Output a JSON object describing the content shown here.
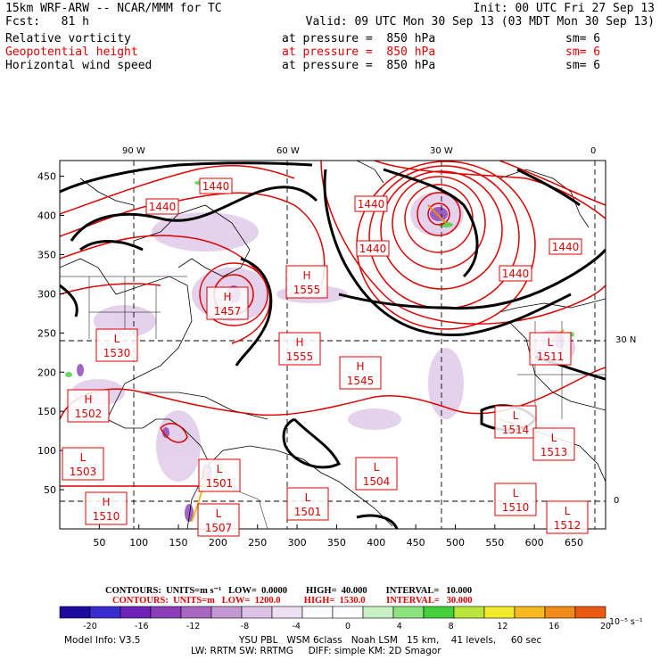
{
  "header": {
    "model": "15km WRF-ARW -- NCAR/MMM for TC",
    "init": "Init: 00 UTC Fri 27 Sep 13",
    "fcst": "Fcst:   81 h",
    "valid": "Valid: 09 UTC Mon 30 Sep 13 (03 MDT Mon 30 Sep 13)",
    "fields": [
      {
        "name": "Relative vorticity",
        "level": "at pressure =  850 hPa",
        "sm": "sm= 6",
        "color": "#000000"
      },
      {
        "name": "Geopotential height",
        "level": "at pressure =  850 hPa",
        "sm": "sm= 6",
        "color": "#e00000"
      },
      {
        "name": "Horizontal wind speed",
        "level": "at pressure =  850 hPa",
        "sm": "sm= 6",
        "color": "#000000"
      }
    ]
  },
  "map": {
    "lon_labels": [
      "90 W",
      "60 W",
      "30 W",
      "0"
    ],
    "lat_labels": [
      "30 N",
      "0"
    ],
    "x_ticks": [
      "50",
      "100",
      "150",
      "200",
      "250",
      "300",
      "350",
      "400",
      "450",
      "500",
      "550",
      "600",
      "650"
    ],
    "y_ticks": [
      "450",
      "400",
      "350",
      "300",
      "250",
      "200",
      "150",
      "100",
      "50"
    ],
    "systems": [
      {
        "type": "H",
        "value": "1457"
      },
      {
        "type": "H",
        "value": "1555"
      },
      {
        "type": "H",
        "value": "1555"
      },
      {
        "type": "H",
        "value": "1545"
      },
      {
        "type": "L",
        "value": "1530"
      },
      {
        "type": "H",
        "value": "1502"
      },
      {
        "type": "L",
        "value": "1503"
      },
      {
        "type": "H",
        "value": "1510"
      },
      {
        "type": "L",
        "value": "1501"
      },
      {
        "type": "L",
        "value": "1507"
      },
      {
        "type": "L",
        "value": "1501"
      },
      {
        "type": "L",
        "value": "1504"
      },
      {
        "type": "L",
        "value": "1510"
      },
      {
        "type": "L",
        "value": "1512"
      },
      {
        "type": "L",
        "value": "1514"
      },
      {
        "type": "L",
        "value": "1513"
      },
      {
        "type": "L",
        "value": "1511"
      }
    ],
    "contour_labels": [
      "1440",
      "1440",
      "1440",
      "1440",
      "1440",
      "1440"
    ]
  },
  "legend": {
    "contours_black": "CONTOURS:  UNITS=m s⁻¹   LOW=  0.0000        HIGH=  40.000        INTERVAL=   10.000",
    "contours_red": "CONTOURS:  UNITS=m   LOW=  1200.0          HIGH=  1530.0         INTERVAL=   30.000",
    "colorbar_labels": [
      "-20",
      "-16",
      "-12",
      "-8",
      "-4",
      "0",
      "4",
      "8",
      "12",
      "16",
      "20"
    ],
    "colorbar_units": "10⁻⁵ s⁻¹",
    "colorbar_colors": [
      "#1c0a9e",
      "#3a2bd0",
      "#6e22b8",
      "#8a3fb8",
      "#a868c2",
      "#c498d2",
      "#dcc3e6",
      "#ece0f2",
      "#ffffff",
      "#ffffff",
      "#c9f0c4",
      "#8be27e",
      "#45cf3a",
      "#b9e63a",
      "#f2ea2c",
      "#f6b920",
      "#f18a18",
      "#e85a10"
    ]
  },
  "footer": {
    "model_info": "Model Info: V3.5",
    "line1": "YSU PBL   WSM 6class   Noah LSM   15 km,    41 levels,     60 sec",
    "line2": "LW: RRTM SW: RRTMG     DIFF: simple KM: 2D Smagor"
  }
}
